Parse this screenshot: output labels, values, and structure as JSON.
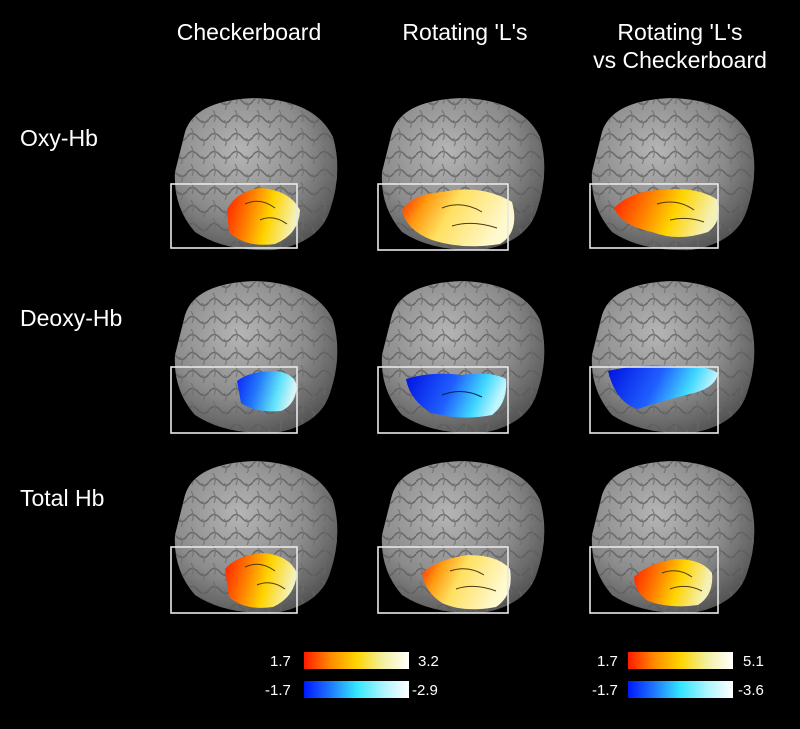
{
  "columns": [
    {
      "line1": "Checkerboard",
      "line2": ""
    },
    {
      "line1": "Rotating 'L's",
      "line2": ""
    },
    {
      "line1": "Rotating 'L's",
      "line2": "vs Checkerboard"
    }
  ],
  "rows": [
    "Oxy-Hb",
    "Deoxy-Hb",
    "Total Hb"
  ],
  "scales": [
    {
      "pos_min": "1.7",
      "pos_max": "3.2",
      "neg_min": "-1.7",
      "neg_max": "-2.9"
    },
    {
      "pos_min": "1.7",
      "pos_max": "5.1",
      "neg_min": "-1.7",
      "neg_max": "-3.6"
    }
  ],
  "colors": {
    "background": "#000000",
    "brain": "#8c8c8c",
    "positive_scale": [
      "#ff1a00",
      "#ff8a00",
      "#ffd400",
      "#f2f0a0",
      "#ffffff"
    ],
    "negative_scale": [
      "#0018ff",
      "#1e78ff",
      "#33e6ff",
      "#aaf4ff",
      "#ffffff"
    ]
  }
}
